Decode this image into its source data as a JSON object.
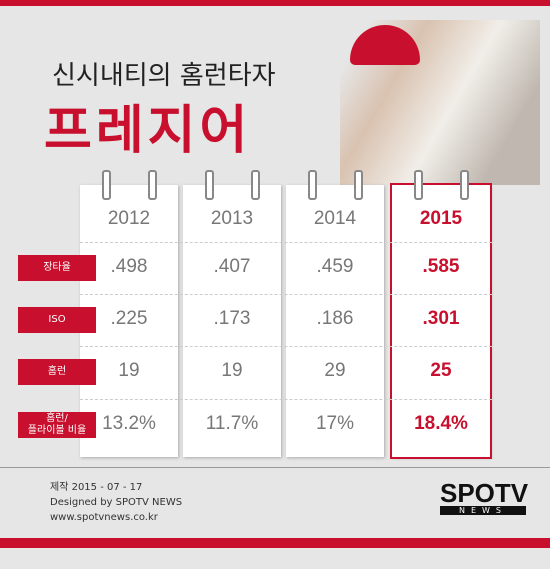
{
  "header": {
    "title": "신시내티의 홈런타자",
    "subtitle": "프레지어"
  },
  "table": {
    "columns": [
      "2012",
      "2013",
      "2014",
      "2015"
    ],
    "rows": [
      {
        "label": [
          "장타율"
        ],
        "values": [
          ".498",
          ".407",
          ".459",
          ".585"
        ]
      },
      {
        "label": [
          "ISO"
        ],
        "values": [
          ".225",
          ".173",
          ".186",
          ".301"
        ]
      },
      {
        "label": [
          "홈런"
        ],
        "values": [
          "19",
          "19",
          "29",
          "25"
        ]
      },
      {
        "label": [
          "홈런/",
          "플라이볼 비율"
        ],
        "values": [
          "13.2%",
          "11.7%",
          "17%",
          "18.4%"
        ]
      }
    ]
  },
  "footer": {
    "lines": [
      "제작 2015 - 07 - 17",
      "Designed by SPOTV NEWS",
      "www.spotvnews.co.kr"
    ]
  },
  "logo": {
    "main": "SPOTV",
    "sub": "NEWS"
  }
}
